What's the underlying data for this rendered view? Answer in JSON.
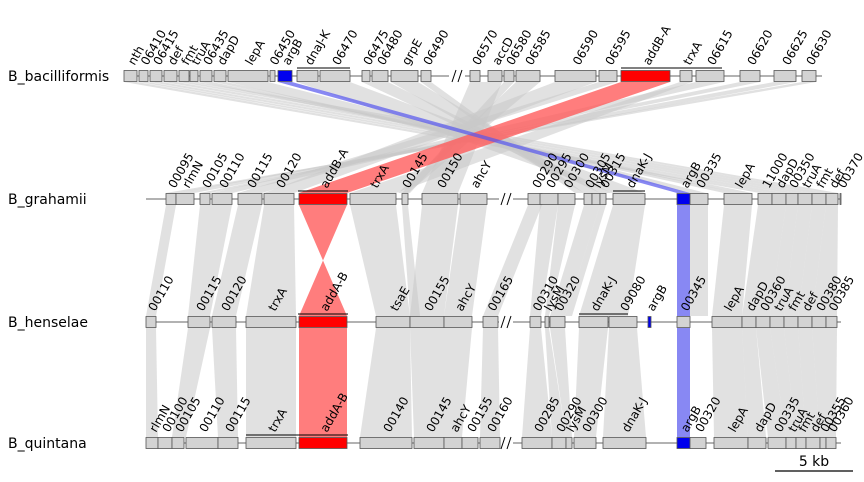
{
  "colors": {
    "gene": "#d3d3d3",
    "link": "#c8c8c8",
    "addB": "#ff0000",
    "addB_link": "#ff5c5c",
    "argB": "#0000ee",
    "argB_link": "#5555ee"
  },
  "scale_bar": {
    "label": "5 kb"
  },
  "tracks": [
    {
      "name": "B_bacilliformis",
      "genes": [
        {
          "label": "nth"
        },
        {
          "label": "06410"
        },
        {
          "label": "06415"
        },
        {
          "label": "def"
        },
        {
          "label": "fmt"
        },
        {
          "label": "truA"
        },
        {
          "label": "06435"
        },
        {
          "label": "dapD"
        },
        {
          "label": "lepA"
        },
        {
          "label": "06450"
        },
        {
          "label": "argB",
          "color": "argB"
        },
        {
          "label": "dnaJ-K"
        },
        {
          "label": "06470"
        },
        {
          "label": "06475"
        },
        {
          "label": "06480"
        },
        {
          "label": "grpE"
        },
        {
          "label": "06490"
        },
        {
          "label": "06570"
        },
        {
          "label": "accD"
        },
        {
          "label": "06580"
        },
        {
          "label": "06585"
        },
        {
          "label": "06590"
        },
        {
          "label": "06595"
        },
        {
          "label": "addB-A",
          "color": "addB"
        },
        {
          "label": "trxA"
        },
        {
          "label": "06615"
        },
        {
          "label": "06620"
        },
        {
          "label": "06625"
        },
        {
          "label": "06630"
        }
      ]
    },
    {
      "name": "B_grahamii",
      "genes": [
        {
          "label": "00095"
        },
        {
          "label": "rlmN"
        },
        {
          "label": "00105"
        },
        {
          "label": "00110"
        },
        {
          "label": "00115"
        },
        {
          "label": "00120"
        },
        {
          "label": "addB-A",
          "color": "addB"
        },
        {
          "label": "trxA"
        },
        {
          "label": "00145"
        },
        {
          "label": "00150"
        },
        {
          "label": "ahcY"
        },
        {
          "label": "00290"
        },
        {
          "label": "00295"
        },
        {
          "label": "00300"
        },
        {
          "label": "00305"
        },
        {
          "label": "lysM"
        },
        {
          "label": "00315"
        },
        {
          "label": "dnaK-J"
        },
        {
          "label": "argB",
          "color": "argB"
        },
        {
          "label": "00335"
        },
        {
          "label": "lepA"
        },
        {
          "label": "11000"
        },
        {
          "label": "dapD"
        },
        {
          "label": "00350"
        },
        {
          "label": "truA"
        },
        {
          "label": "fmt"
        },
        {
          "label": "def"
        },
        {
          "label": "00370"
        }
      ]
    },
    {
      "name": "B_henselae",
      "genes": [
        {
          "label": "00110"
        },
        {
          "label": "00115"
        },
        {
          "label": "00120"
        },
        {
          "label": "trxA"
        },
        {
          "label": "addA-B",
          "color": "addB"
        },
        {
          "label": "tsaE"
        },
        {
          "label": "00155"
        },
        {
          "label": "ahcY"
        },
        {
          "label": "00165"
        },
        {
          "label": "00310"
        },
        {
          "label": "lysM"
        },
        {
          "label": "00320"
        },
        {
          "label": "dnaK-J"
        },
        {
          "label": "09080"
        },
        {
          "label": "argB",
          "color": "argB"
        },
        {
          "label": "00345"
        },
        {
          "label": "lepA"
        },
        {
          "label": "dapD"
        },
        {
          "label": "00360"
        },
        {
          "label": "truA"
        },
        {
          "label": "fmt"
        },
        {
          "label": "def"
        },
        {
          "label": "00380"
        },
        {
          "label": "00385"
        }
      ]
    },
    {
      "name": "B_quintana",
      "genes": [
        {
          "label": "rlmN"
        },
        {
          "label": "00100"
        },
        {
          "label": "00105"
        },
        {
          "label": "00110"
        },
        {
          "label": "00115"
        },
        {
          "label": "trxA"
        },
        {
          "label": "addA-B",
          "color": "addB"
        },
        {
          "label": "00140"
        },
        {
          "label": "00145"
        },
        {
          "label": "ahcY"
        },
        {
          "label": "00155"
        },
        {
          "label": "00160"
        },
        {
          "label": "00285"
        },
        {
          "label": "00290"
        },
        {
          "label": "lysM"
        },
        {
          "label": "00300"
        },
        {
          "label": "dnaK-J"
        },
        {
          "label": "argB",
          "color": "argB"
        },
        {
          "label": "00320"
        },
        {
          "label": "lepA"
        },
        {
          "label": "dapD"
        },
        {
          "label": "00335"
        },
        {
          "label": "truA"
        },
        {
          "label": "fmt"
        },
        {
          "label": "def"
        },
        {
          "label": "00355"
        },
        {
          "label": "00360"
        }
      ]
    }
  ]
}
